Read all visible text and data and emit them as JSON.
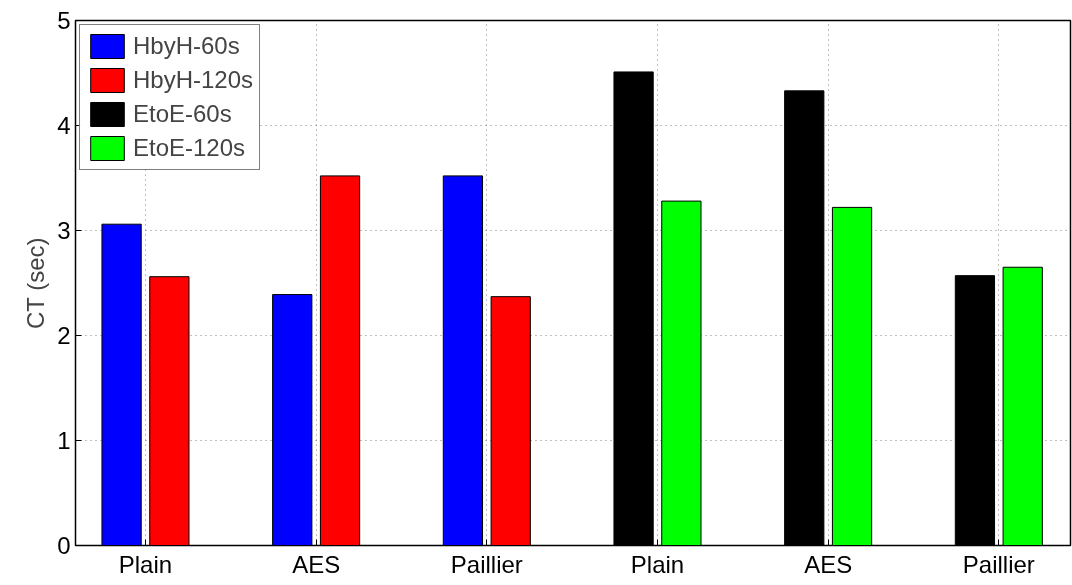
{
  "chart_data": {
    "type": "bar",
    "ylabel": "CT (sec)",
    "categories": [
      "Plain",
      "AES",
      "Paillier",
      "Plain",
      "AES",
      "Paillier"
    ],
    "series": [
      {
        "name": "HbyH-60s",
        "color": "#0000ff",
        "values": [
          3.06,
          2.39,
          3.52,
          null,
          null,
          null
        ]
      },
      {
        "name": "HbyH-120s",
        "color": "#ff0000",
        "values": [
          2.56,
          3.52,
          2.37,
          null,
          null,
          null
        ]
      },
      {
        "name": "EtoE-60s",
        "color": "#000000",
        "values": [
          null,
          null,
          null,
          4.51,
          4.33,
          2.57
        ]
      },
      {
        "name": "EtoE-120s",
        "color": "#00ff00",
        "values": [
          null,
          null,
          null,
          3.28,
          3.22,
          2.65
        ]
      }
    ],
    "ylim": [
      0,
      5
    ],
    "yticks": [
      0,
      1,
      2,
      3,
      4,
      5
    ],
    "grid": true,
    "legend": "top left"
  }
}
